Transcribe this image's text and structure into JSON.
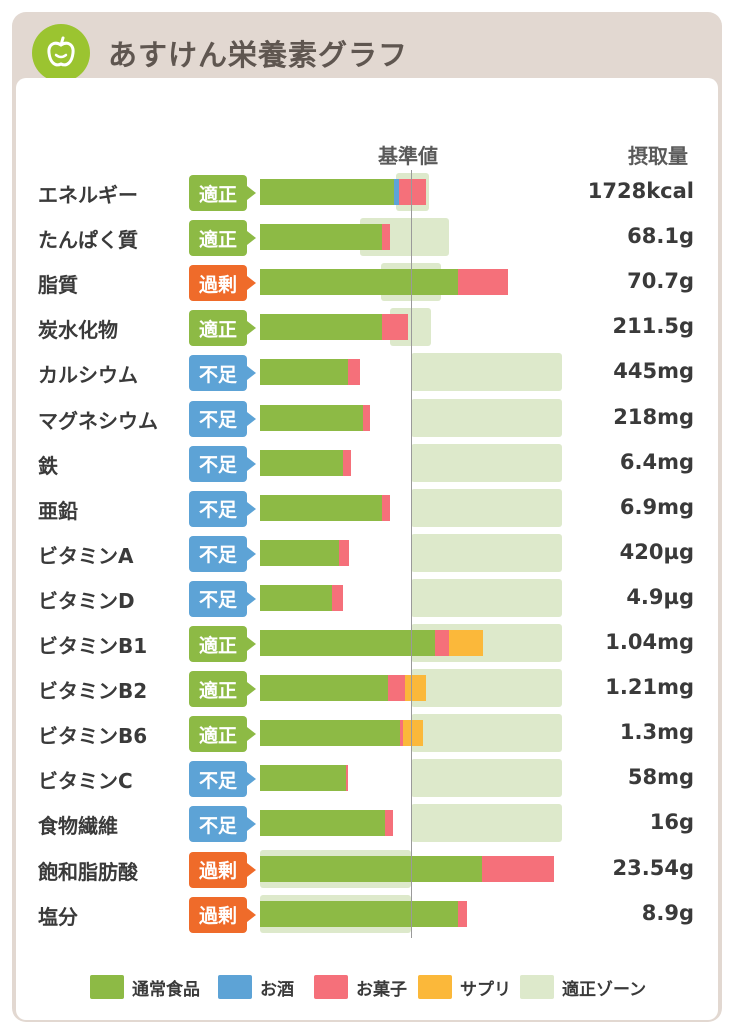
{
  "header": {
    "title": "あすけん栄養素グラフ",
    "logo_icon": "apple-icon"
  },
  "columns": {
    "standard": "基準値",
    "intake": "摂取量"
  },
  "colors": {
    "normal": "#8dba45",
    "alcohol": "#5da3d6",
    "snack": "#f5707a",
    "supplement": "#fbb83a",
    "zone": "#dde9cb",
    "ok": "#8dba45",
    "under": "#5da3d6",
    "over": "#ef6b2a"
  },
  "chart_data": {
    "type": "bar",
    "standard_reference": 1.0,
    "categories": [
      "エネルギー",
      "たんぱく質",
      "脂質",
      "炭水化物",
      "カルシウム",
      "マグネシウム",
      "鉄",
      "亜鉛",
      "ビタミンA",
      "ビタミンD",
      "ビタミンB1",
      "ビタミンB2",
      "ビタミンB6",
      "ビタミンC",
      "食物繊維",
      "飽和脂肪酸",
      "塩分"
    ],
    "rows": [
      {
        "name": "エネルギー",
        "status": "適正",
        "status_key": "ok",
        "intake": "1728kcal",
        "zone": [
          0.9,
          1.12
        ],
        "segments": {
          "normal": 0.89,
          "alcohol": 0.03,
          "snack": 0.18,
          "supplement": 0
        }
      },
      {
        "name": "たんぱく質",
        "status": "適正",
        "status_key": "ok",
        "intake": "68.1g",
        "zone": [
          0.66,
          1.25
        ],
        "segments": {
          "normal": 0.81,
          "alcohol": 0,
          "snack": 0.05,
          "supplement": 0
        }
      },
      {
        "name": "脂質",
        "status": "過剰",
        "status_key": "over",
        "intake": "70.7g",
        "zone": [
          0.8,
          1.2
        ],
        "segments": {
          "normal": 1.31,
          "alcohol": 0,
          "snack": 0.33,
          "supplement": 0
        }
      },
      {
        "name": "炭水化物",
        "status": "適正",
        "status_key": "ok",
        "intake": "211.5g",
        "zone": [
          0.86,
          1.13
        ],
        "segments": {
          "normal": 0.81,
          "alcohol": 0,
          "snack": 0.17,
          "supplement": 0
        }
      },
      {
        "name": "カルシウム",
        "status": "不足",
        "status_key": "under",
        "intake": "445mg",
        "zone": [
          1.0,
          2.0
        ],
        "segments": {
          "normal": 0.58,
          "alcohol": 0,
          "snack": 0.08,
          "supplement": 0
        }
      },
      {
        "name": "マグネシウム",
        "status": "不足",
        "status_key": "under",
        "intake": "218mg",
        "zone": [
          1.0,
          2.0
        ],
        "segments": {
          "normal": 0.68,
          "alcohol": 0,
          "snack": 0.05,
          "supplement": 0
        }
      },
      {
        "name": "鉄",
        "status": "不足",
        "status_key": "under",
        "intake": "6.4mg",
        "zone": [
          1.0,
          2.0
        ],
        "segments": {
          "normal": 0.55,
          "alcohol": 0,
          "snack": 0.05,
          "supplement": 0
        }
      },
      {
        "name": "亜鉛",
        "status": "不足",
        "status_key": "under",
        "intake": "6.9mg",
        "zone": [
          1.0,
          2.0
        ],
        "segments": {
          "normal": 0.81,
          "alcohol": 0,
          "snack": 0.05,
          "supplement": 0
        }
      },
      {
        "name": "ビタミンA",
        "status": "不足",
        "status_key": "under",
        "intake": "420µg",
        "zone": [
          1.0,
          2.0
        ],
        "segments": {
          "normal": 0.52,
          "alcohol": 0,
          "snack": 0.07,
          "supplement": 0
        }
      },
      {
        "name": "ビタミンD",
        "status": "不足",
        "status_key": "under",
        "intake": "4.9µg",
        "zone": [
          1.0,
          2.0
        ],
        "segments": {
          "normal": 0.48,
          "alcohol": 0,
          "snack": 0.07,
          "supplement": 0
        }
      },
      {
        "name": "ビタミンB1",
        "status": "適正",
        "status_key": "ok",
        "intake": "1.04mg",
        "zone": [
          1.0,
          2.0
        ],
        "segments": {
          "normal": 1.16,
          "alcohol": 0,
          "snack": 0.09,
          "supplement": 0.23
        }
      },
      {
        "name": "ビタミンB2",
        "status": "適正",
        "status_key": "ok",
        "intake": "1.21mg",
        "zone": [
          1.0,
          2.0
        ],
        "segments": {
          "normal": 0.85,
          "alcohol": 0,
          "snack": 0.11,
          "supplement": 0.14
        }
      },
      {
        "name": "ビタミンB6",
        "status": "適正",
        "status_key": "ok",
        "intake": "1.3mg",
        "zone": [
          1.0,
          2.0
        ],
        "segments": {
          "normal": 0.93,
          "alcohol": 0,
          "snack": 0.02,
          "supplement": 0.13
        }
      },
      {
        "name": "ビタミンC",
        "status": "不足",
        "status_key": "under",
        "intake": "58mg",
        "zone": [
          1.0,
          2.0
        ],
        "segments": {
          "normal": 0.57,
          "alcohol": 0,
          "snack": 0.01,
          "supplement": 0
        }
      },
      {
        "name": "食物繊維",
        "status": "不足",
        "status_key": "under",
        "intake": "16g",
        "zone": [
          1.0,
          2.0
        ],
        "segments": {
          "normal": 0.83,
          "alcohol": 0,
          "snack": 0.05,
          "supplement": 0
        }
      },
      {
        "name": "飽和脂肪酸",
        "status": "過剰",
        "status_key": "over",
        "intake": "23.54g",
        "zone": [
          0,
          1.0
        ],
        "segments": {
          "normal": 1.47,
          "alcohol": 0,
          "snack": 0.48,
          "supplement": 0
        }
      },
      {
        "name": "塩分",
        "status": "過剰",
        "status_key": "over",
        "intake": "8.9g",
        "zone": [
          0,
          1.0
        ],
        "segments": {
          "normal": 1.31,
          "alcohol": 0,
          "snack": 0.06,
          "supplement": 0
        }
      }
    ],
    "legend": [
      {
        "key": "normal",
        "label": "通常食品"
      },
      {
        "key": "alcohol",
        "label": "お酒"
      },
      {
        "key": "snack",
        "label": "お菓子"
      },
      {
        "key": "supplement",
        "label": "サプリ"
      },
      {
        "key": "zone",
        "label": "適正ゾーン"
      }
    ]
  }
}
